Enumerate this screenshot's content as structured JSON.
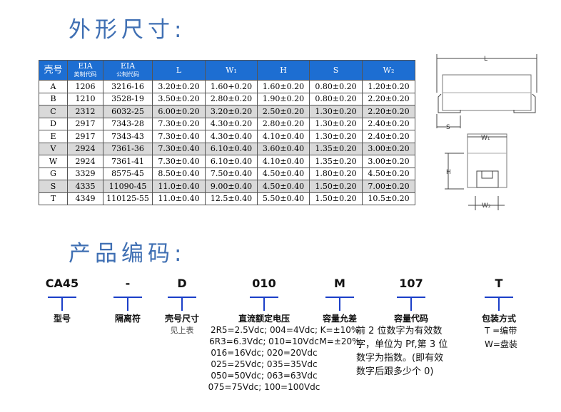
{
  "section1_title": "外形尺寸:",
  "section2_title": "产品编码:",
  "table": {
    "headers": [
      "壳号",
      "EIA",
      "英制代码",
      "EIA",
      "公制代码",
      "L",
      "W₁",
      "H",
      "S",
      "W₂"
    ],
    "rows": [
      [
        "A",
        "1206",
        "3216-16",
        "3.20±0.20",
        "1.60+0.20",
        "1.60±0.20",
        "0.80±0.20",
        "1.20±0.20"
      ],
      [
        "B",
        "1210",
        "3528-19",
        "3.50±0.20",
        "2.80±0.20",
        "1.90±0.20",
        "0.80±0.20",
        "2.20±0.20"
      ],
      [
        "C",
        "2312",
        "6032-25",
        "6.00±0.20",
        "3.20±0.20",
        "2.50±0.20",
        "1.30±0.20",
        "2.20±0.20"
      ],
      [
        "D",
        "2917",
        "7343-28",
        "7.30±0.20",
        "4.30±0.20",
        "2.80±0.20",
        "1.30±0.20",
        "2.40±0.20"
      ],
      [
        "E",
        "2917",
        "7343-43",
        "7.30±0.40",
        "4.30±0.40",
        "4.10±0.40",
        "1.30±0.20",
        "2.40±0.20"
      ],
      [
        "V",
        "2924",
        "7361-36",
        "7.30±0.40",
        "6.10±0.40",
        "3.60±0.40",
        "1.35±0.20",
        "3.00±0.20"
      ],
      [
        "W",
        "2924",
        "7361-41",
        "7.30±0.40",
        "6.10±0.40",
        "4.10±0.40",
        "1.35±0.20",
        "3.00±0.20"
      ],
      [
        "G",
        "3329",
        "8575-45",
        "8.50±0.40",
        "7.50±0.40",
        "4.50±0.40",
        "1.80±0.20",
        "4.50±0.20"
      ],
      [
        "S",
        "4335",
        "11090-45",
        "11.0±0.40",
        "9.00±0.40",
        "4.50±0.40",
        "1.50±0.20",
        "7.00±0.20"
      ],
      [
        "T",
        "4349",
        "110125-55",
        "11.0±0.40",
        "12.5±0.40",
        "5.50±0.40",
        "1.50±0.20",
        "10.5±0.20"
      ]
    ]
  },
  "diagram": {
    "L": "L",
    "S": "S",
    "W1": "W₁",
    "H": "H",
    "W2": "W₂"
  },
  "code": [
    {
      "code": "CA45",
      "label": "型号",
      "desc": []
    },
    {
      "code": "-",
      "label": "隔离符",
      "desc": []
    },
    {
      "code": "D",
      "label": "壳号尺寸",
      "sub": "见上表",
      "desc": []
    },
    {
      "code": "010",
      "label": "直流额定电压",
      "desc": [
        "2R5=2.5Vdc; 004=4Vdc;",
        "6R3=6.3Vdc; 010=10Vdc",
        "016=16Vdc; 020=20Vdc",
        "025=25Vdc; 035=35Vdc",
        "050=50Vdc; 063=63Vdc",
        "075=75Vdc; 100=100Vdc"
      ]
    },
    {
      "code": "M",
      "label": "容量允差",
      "desc": [
        "K=±10%",
        "M=±20%"
      ]
    },
    {
      "code": "107",
      "label": "容量代码",
      "desc": [
        "前 2 位数字为有效数",
        "字，单位为 Pf,第 3 位",
        "数字为指数。(即有效",
        "数字后跟多少个 0)"
      ]
    },
    {
      "code": "T",
      "label": "包装方式",
      "desc": [
        "T =编带",
        "W=盘装"
      ]
    }
  ]
}
